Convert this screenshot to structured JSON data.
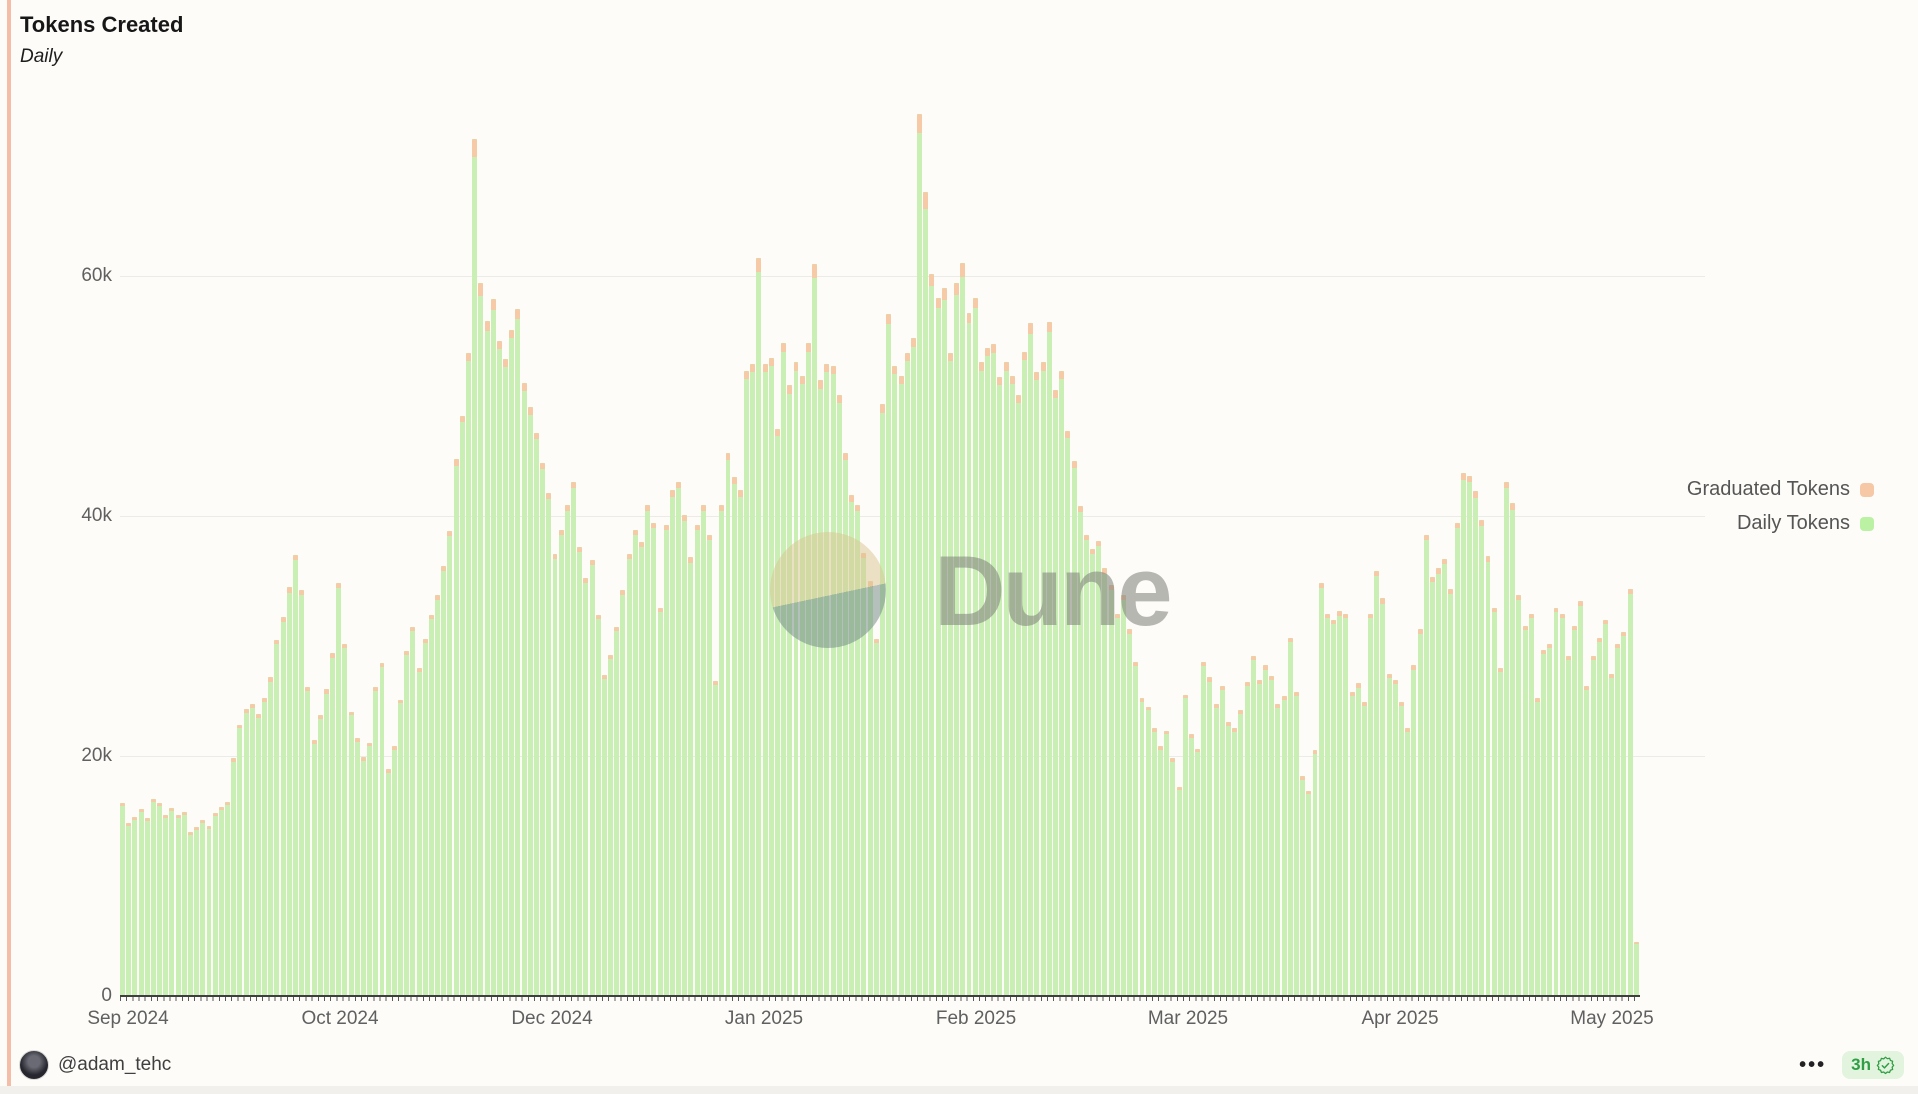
{
  "page": {
    "title": "Tokens Created",
    "subtitle": "Daily"
  },
  "legend": [
    {
      "label": "Graduated Tokens",
      "color": "#f6c8a6"
    },
    {
      "label": "Daily Tokens",
      "color": "#bbf1a3"
    }
  ],
  "watermark": {
    "text": "Dune"
  },
  "footer": {
    "author": "@adam_tehc",
    "menu_dots": "•••",
    "badge_time": "3h"
  },
  "colors": {
    "daily_bar": "#c9efb5",
    "graduated_cap": "#f6c9a7",
    "grid": "#ebebe8",
    "axis_text": "#606060",
    "badge_green": "#2f9e44",
    "left_stripe": "#f3bda7",
    "background": "#fdfcf9"
  },
  "chart_data": {
    "type": "bar",
    "stacked": true,
    "title": "Tokens Created",
    "subtitle": "Daily",
    "unit": "tokens",
    "values_in": "thousands",
    "x_range": {
      "start": "2024-09-01",
      "end": "2025-05-04"
    },
    "x_tick_labels": [
      "Sep 2024",
      "Oct 2024",
      "Dec 2024",
      "Jan 2025",
      "Feb 2025",
      "Mar 2025",
      "Apr 2025",
      "May 2025"
    ],
    "y_ticks": [
      0,
      20,
      40,
      60
    ],
    "y_tick_labels": [
      "0",
      "20k",
      "40k",
      "60k"
    ],
    "ylim": [
      0,
      75
    ],
    "grid": true,
    "legend_position": "right",
    "series": [
      {
        "name": "Daily Tokens",
        "color": "#c9efb5",
        "values": [
          15.8,
          14.2,
          14.7,
          15.3,
          14.6,
          16.2,
          15.8,
          14.8,
          15.4,
          14.8,
          15.1,
          13.4,
          13.8,
          14.4,
          13.9,
          15.0,
          15.5,
          15.9,
          19.5,
          22.3,
          23.6,
          24.0,
          23.2,
          24.5,
          26.2,
          29.3,
          31.2,
          33.6,
          36.3,
          33.4,
          25.4,
          21.0,
          23.1,
          25.2,
          28.2,
          34.0,
          29.0,
          23.4,
          21.2,
          19.6,
          20.8,
          25.4,
          27.4,
          18.6,
          20.5,
          24.4,
          28.4,
          30.4,
          27.0,
          29.4,
          31.4,
          33.0,
          35.4,
          38.3,
          44.2,
          47.8,
          52.9,
          69.9,
          58.3,
          55.4,
          57.2,
          53.9,
          52.4,
          54.8,
          56.4,
          50.4,
          48.4,
          46.4,
          43.9,
          41.4,
          36.4,
          38.4,
          40.4,
          42.3,
          37.0,
          34.4,
          35.9,
          31.4,
          26.4,
          28.1,
          30.4,
          33.4,
          36.4,
          38.4,
          37.4,
          40.4,
          39.0,
          32.0,
          38.8,
          41.6,
          42.3,
          39.6,
          36.1,
          38.8,
          40.4,
          38.0,
          25.9,
          40.4,
          44.7,
          42.7,
          41.6,
          51.4,
          52.0,
          60.3,
          52.0,
          52.5,
          46.7,
          53.7,
          50.2,
          52.1,
          51.0,
          53.7,
          59.8,
          50.6,
          52.0,
          51.8,
          49.4,
          44.7,
          41.2,
          40.4,
          36.5,
          34.1,
          29.4,
          48.6,
          56.0,
          51.8,
          51.0,
          52.9,
          54.1,
          71.9,
          65.6,
          59.2,
          57.3,
          58.0,
          52.9,
          58.4,
          59.9,
          56.1,
          57.3,
          52.1,
          53.3,
          53.6,
          50.9,
          52.1,
          51.0,
          49.4,
          53.0,
          55.2,
          51.3,
          52.1,
          55.3,
          49.8,
          51.4,
          46.5,
          44.0,
          40.3,
          38.0,
          36.8,
          37.5,
          35.2,
          33.8,
          31.5,
          33.0,
          30.2,
          27.5,
          24.5,
          23.8,
          22.0,
          20.5,
          21.8,
          19.5,
          17.2,
          24.8,
          21.5,
          20.3,
          27.5,
          26.2,
          24.0,
          25.5,
          22.5,
          22.0,
          23.5,
          25.8,
          28.0,
          26.0,
          27.2,
          26.3,
          24.0,
          24.7,
          29.5,
          25.0,
          18.0,
          16.8,
          20.2,
          34.0,
          31.5,
          31.0,
          31.7,
          31.5,
          25.0,
          25.7,
          24.2,
          31.5,
          35.0,
          32.7,
          26.5,
          26.0,
          24.2,
          22.0,
          27.2,
          30.2,
          38.0,
          34.5,
          35.2,
          36.0,
          33.5,
          39.0,
          43.0,
          42.8,
          41.5,
          39.2,
          36.2,
          32.0,
          27.0,
          42.3,
          40.5,
          33.0,
          30.5,
          31.5,
          24.5,
          28.5,
          29.0,
          32.0,
          31.5,
          28.0,
          30.5,
          32.5,
          25.5,
          28.0,
          29.5,
          31.0,
          26.5,
          29.0,
          30.0,
          33.5,
          4.3
        ]
      },
      {
        "name": "Graduated Tokens",
        "color": "#f6c9a7",
        "values": [
          0.25,
          0.25,
          0.25,
          0.25,
          0.25,
          0.25,
          0.25,
          0.25,
          0.25,
          0.25,
          0.25,
          0.25,
          0.25,
          0.25,
          0.25,
          0.25,
          0.25,
          0.25,
          0.3,
          0.3,
          0.3,
          0.3,
          0.3,
          0.3,
          0.35,
          0.35,
          0.35,
          0.45,
          0.45,
          0.45,
          0.35,
          0.3,
          0.3,
          0.35,
          0.35,
          0.45,
          0.35,
          0.3,
          0.3,
          0.3,
          0.3,
          0.35,
          0.35,
          0.3,
          0.3,
          0.3,
          0.35,
          0.35,
          0.35,
          0.35,
          0.35,
          0.45,
          0.45,
          0.45,
          0.55,
          0.55,
          0.7,
          1.5,
          1.1,
          0.85,
          0.85,
          0.7,
          0.7,
          0.7,
          0.85,
          0.7,
          0.7,
          0.55,
          0.55,
          0.55,
          0.45,
          0.45,
          0.55,
          0.55,
          0.45,
          0.45,
          0.45,
          0.35,
          0.35,
          0.35,
          0.35,
          0.45,
          0.45,
          0.45,
          0.45,
          0.55,
          0.45,
          0.35,
          0.45,
          0.55,
          0.55,
          0.45,
          0.45,
          0.45,
          0.55,
          0.45,
          0.35,
          0.55,
          0.55,
          0.55,
          0.55,
          0.7,
          0.7,
          1.2,
          0.7,
          0.7,
          0.55,
          0.7,
          0.7,
          0.7,
          0.7,
          0.7,
          1.2,
          0.7,
          0.7,
          0.7,
          0.7,
          0.55,
          0.55,
          0.55,
          0.45,
          0.45,
          0.35,
          0.7,
          0.85,
          0.7,
          0.7,
          0.7,
          0.7,
          1.6,
          1.4,
          1.0,
          0.85,
          1.0,
          0.7,
          1.0,
          1.2,
          0.85,
          0.85,
          0.7,
          0.7,
          0.7,
          0.7,
          0.7,
          0.7,
          0.7,
          0.7,
          0.85,
          0.7,
          0.7,
          0.85,
          0.7,
          0.7,
          0.55,
          0.55,
          0.55,
          0.45,
          0.45,
          0.45,
          0.45,
          0.45,
          0.35,
          0.45,
          0.35,
          0.35,
          0.3,
          0.3,
          0.3,
          0.3,
          0.3,
          0.3,
          0.25,
          0.3,
          0.3,
          0.3,
          0.35,
          0.35,
          0.3,
          0.35,
          0.3,
          0.3,
          0.3,
          0.35,
          0.35,
          0.35,
          0.35,
          0.35,
          0.3,
          0.3,
          0.35,
          0.35,
          0.3,
          0.25,
          0.3,
          0.45,
          0.35,
          0.35,
          0.35,
          0.35,
          0.35,
          0.35,
          0.3,
          0.35,
          0.45,
          0.45,
          0.35,
          0.35,
          0.3,
          0.3,
          0.35,
          0.35,
          0.45,
          0.45,
          0.45,
          0.45,
          0.45,
          0.45,
          0.55,
          0.55,
          0.55,
          0.45,
          0.45,
          0.35,
          0.35,
          0.55,
          0.55,
          0.45,
          0.35,
          0.35,
          0.3,
          0.35,
          0.35,
          0.35,
          0.35,
          0.35,
          0.35,
          0.45,
          0.35,
          0.35,
          0.35,
          0.35,
          0.35,
          0.35,
          0.35,
          0.45,
          0.15
        ]
      }
    ]
  }
}
